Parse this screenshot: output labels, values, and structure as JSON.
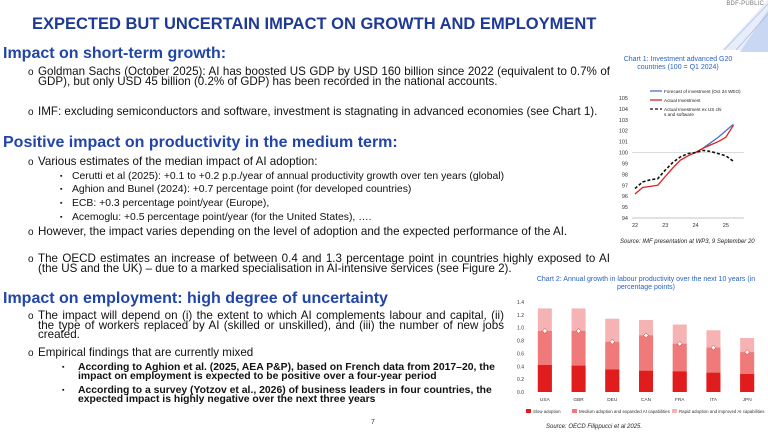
{
  "header": {
    "brand": "BDF-PUBLIC",
    "title": "EXPECTED BUT UNCERTAIN IMPACT ON GROWTH AND EMPLOYMENT"
  },
  "sections": [
    {
      "heading": "Impact on short-term growth:",
      "bullets": [
        "Goldman Sachs (October 2025): AI has boosted US GDP by USD 160 billion since 2022 (equivalent to 0.7% of GDP), but only USD 45 billion (0.2% of GDP) has been recorded in the national accounts.",
        "IMF: excluding semiconductors and software, investment is stagnating in advanced economies (see Chart 1)."
      ]
    },
    {
      "heading": "Positive impact on productivity in the medium term:",
      "bullets": [
        "Various estimates of the median impact of AI adoption:",
        "However, the impact varies depending on the level of adoption and the expected performance of the AI.",
        "The OECD estimates an increase of between 0.4 and 1.3 percentage point in countries highly exposed to AI (the US and the UK) – due to a marked specialisation in AI-intensive services (see Figure 2)."
      ],
      "sub_bullets": [
        "Cerutti et al (2025): +0.1 to +0.2 p.p./year of annual productivity growth  over ten years (global)",
        "Aghion and Bunel (2024): +0.7 percentage point (for developed countries)",
        "ECB: +0.3 percentage point/year (Europe),",
        "Acemoglu: +0.5 percentage point/year (for the United States), …."
      ]
    },
    {
      "heading": "Impact on employment: high degree of uncertainty",
      "bullets": [
        "The impact will depend on (i) the extent to which AI complements labour and capital, (ii) the type of workers replaced by AI (skilled or unskilled), and (iii) the number of new jobs created.",
        "Empirical findings that are currently mixed"
      ],
      "sub_bullets": [
        "According to Aghion et al. (2025, AEA P&P), based on French data from 2017–20, the impact on employment is expected to be positive over a four-year period",
        "According to a survey (Yotzov et al., 2026) of business leaders in four countries, the expected impact is highly negative over the next three years"
      ]
    }
  ],
  "markers": {
    "level1": "o",
    "level2": "▪"
  },
  "page_number": "7",
  "chart_data": [
    {
      "type": "line",
      "title": "Chart 1: Investment advanced G20 countries (100 = Q1 2024)",
      "source": "Source: IMF presentation at WP3, 9 September 20",
      "x": [
        22,
        22.25,
        22.5,
        22.75,
        23,
        23.25,
        23.5,
        23.75,
        24,
        24.25,
        24.5,
        24.75,
        25,
        25.25
      ],
      "x_ticks": [
        "22",
        "23",
        "24",
        "25"
      ],
      "ylim": [
        94,
        105
      ],
      "y_ticks": [
        94,
        95,
        96,
        97,
        98,
        99,
        100,
        101,
        102,
        103,
        104,
        105
      ],
      "legend_position": "top",
      "series": [
        {
          "name": "Forecast of investment (Oct 24 WEO)",
          "color": "#4a72c4",
          "dash": "solid",
          "values": [
            null,
            null,
            null,
            null,
            null,
            null,
            null,
            null,
            100,
            100.4,
            100.9,
            101.4,
            102,
            102.6
          ]
        },
        {
          "name": "Actual Investment",
          "color": "#e02020",
          "dash": "solid",
          "values": [
            96.2,
            96.8,
            96.9,
            97,
            97.8,
            98.6,
            99.3,
            99.7,
            100,
            100.4,
            100.7,
            101,
            101.4,
            102.5
          ]
        },
        {
          "name": "Actual Investment ex US chips and software",
          "color": "#111111",
          "dash": "dashed",
          "values": [
            96.7,
            97.3,
            97.5,
            97.6,
            98.4,
            99.1,
            99.6,
            99.9,
            100,
            100.2,
            100.1,
            99.9,
            99.7,
            99.2
          ]
        }
      ]
    },
    {
      "type": "bar",
      "title": "Chart 2: Annual growth in labour productivity over the next 10 years (in percentage points)",
      "source": "Source: OECD Filippucci et al 2025.",
      "categories": [
        "USA",
        "GBR",
        "DEU",
        "CAN",
        "FRA",
        "ITA",
        "JPN"
      ],
      "ylim": [
        0,
        1.4
      ],
      "y_ticks": [
        "0.0",
        "0.2",
        "0.4",
        "0.6",
        "0.8",
        "1.0",
        "1.2",
        "1.4"
      ],
      "legend_position": "bottom",
      "series": [
        {
          "name": "Slow adoption",
          "color": "#e11c1c",
          "values": [
            0.42,
            0.41,
            0.35,
            0.33,
            0.32,
            0.3,
            0.28
          ]
        },
        {
          "name": "Medium adoption and expanded AI capabilities",
          "color": "#f07a7a",
          "values": [
            0.95,
            0.95,
            0.78,
            0.88,
            0.75,
            0.69,
            0.62
          ]
        },
        {
          "name": "Rapid adoption and improved AI capabilities",
          "color": "#f5b3b3",
          "values": [
            1.3,
            1.3,
            1.14,
            1.12,
            1.05,
            0.96,
            0.84
          ]
        }
      ]
    }
  ]
}
